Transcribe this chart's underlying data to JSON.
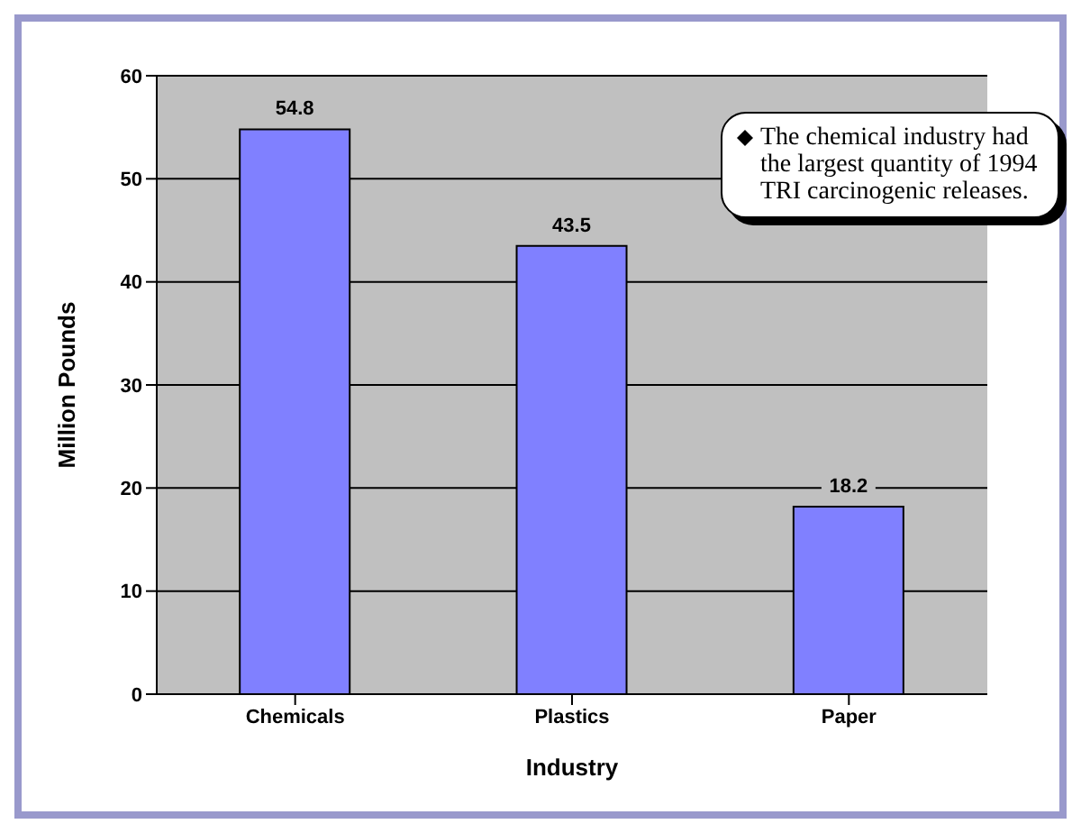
{
  "chart_data": {
    "type": "bar",
    "xlabel": "Industry",
    "ylabel": "Million Pounds",
    "categories": [
      "Chemicals",
      "Plastics",
      "Paper"
    ],
    "values": [
      54.8,
      43.5,
      18.2
    ],
    "color": "#8080ff",
    "ylim": [
      0,
      60
    ],
    "yticks": [
      0,
      10,
      20,
      30,
      40,
      50,
      60
    ],
    "grid": "y",
    "data_labels": true,
    "annotations": [
      "The chemical industry had the largest quantity of 1994 TRI carcinogenic releases."
    ]
  }
}
